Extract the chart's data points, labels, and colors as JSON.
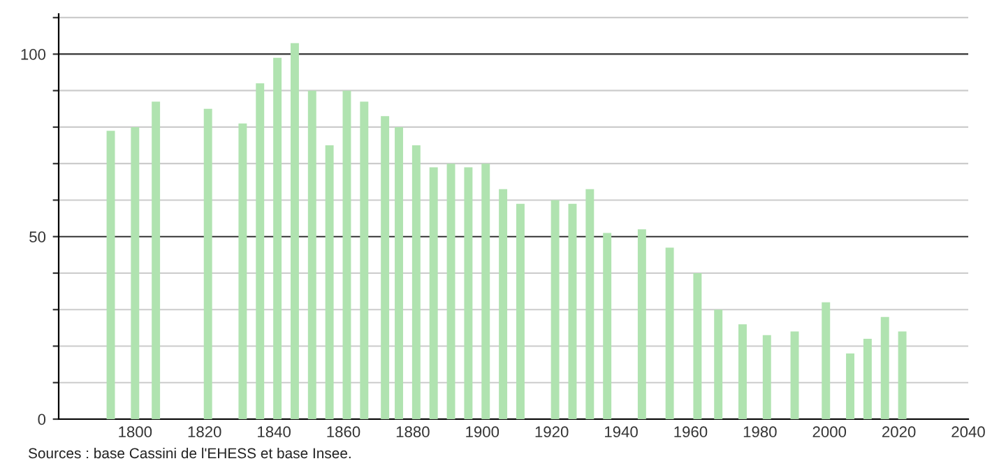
{
  "chart_data": {
    "type": "bar",
    "x": [
      1793,
      1800,
      1806,
      1821,
      1831,
      1836,
      1841,
      1846,
      1851,
      1856,
      1861,
      1866,
      1872,
      1876,
      1881,
      1886,
      1891,
      1896,
      1901,
      1906,
      1911,
      1921,
      1926,
      1931,
      1936,
      1946,
      1954,
      1962,
      1968,
      1975,
      1982,
      1990,
      1999,
      2006,
      2011,
      2016,
      2021
    ],
    "values": [
      79,
      80,
      87,
      85,
      81,
      92,
      99,
      103,
      90,
      75,
      90,
      87,
      83,
      80,
      75,
      69,
      70,
      69,
      70,
      63,
      59,
      60,
      59,
      63,
      51,
      52,
      47,
      40,
      30,
      26,
      23,
      24,
      32,
      18,
      22,
      28,
      24
    ],
    "color": "#b0e3b0",
    "xlim": [
      1778,
      2040
    ],
    "xticks": [
      1800,
      1820,
      1840,
      1860,
      1880,
      1900,
      1920,
      1940,
      1960,
      1980,
      2000,
      2020,
      2040
    ],
    "ylim": [
      0,
      111
    ],
    "yticks": [
      0,
      {
        "value": 10,
        "label": null
      },
      {
        "value": 20,
        "label": null
      },
      {
        "value": 30,
        "label": null
      },
      {
        "value": 40,
        "label": null
      },
      50,
      {
        "value": 60,
        "label": null
      },
      {
        "value": 70,
        "label": null
      },
      {
        "value": 80,
        "label": null
      },
      {
        "value": 90,
        "label": null
      },
      100,
      {
        "value": 110,
        "label": null
      }
    ],
    "grid": "y",
    "annotations": [
      "Sources : base Cassini de l'EHESS et base Insee."
    ]
  }
}
